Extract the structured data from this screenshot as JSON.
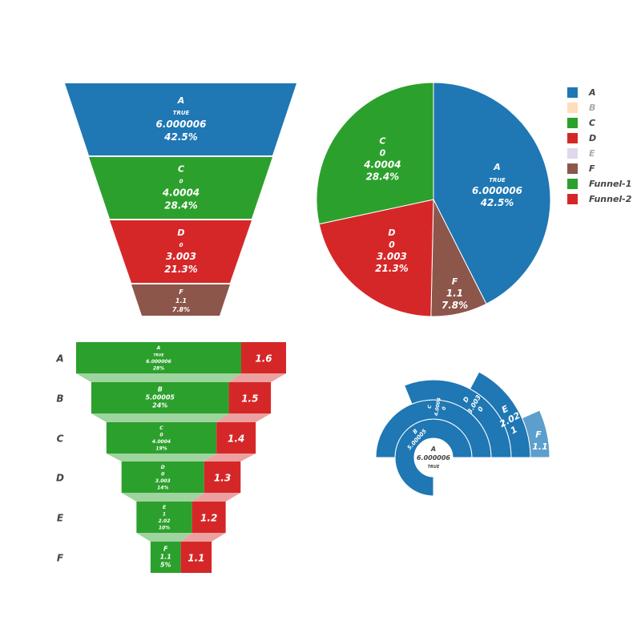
{
  "colors": {
    "A": "#1f77b4",
    "B": "#ffbb78",
    "C": "#2ca02c",
    "D": "#d62728",
    "E": "#c5b0d5",
    "F": "#8c564b",
    "Funnel-1": "#2ca02c",
    "Funnel-2": "#d62728",
    "Sunburst": "#1f77b4",
    "Sunburst-light": "#5d9fcc",
    "Connector-green": "#9ed49e",
    "Connector-red": "#eda0a0"
  },
  "legend": [
    {
      "label": "A",
      "color": "#1f77b4",
      "faded": false
    },
    {
      "label": "B",
      "color": "#ffbb78",
      "faded": true
    },
    {
      "label": "C",
      "color": "#2ca02c",
      "faded": false
    },
    {
      "label": "D",
      "color": "#d62728",
      "faded": false
    },
    {
      "label": "E",
      "color": "#c5b0d5",
      "faded": true
    },
    {
      "label": "F",
      "color": "#8c564b",
      "faded": false
    },
    {
      "label": "Funnel-1",
      "color": "#2ca02c",
      "faded": false
    },
    {
      "label": "Funnel-2",
      "color": "#d62728",
      "faded": false
    }
  ],
  "chart_data": [
    {
      "type": "funnelarea",
      "segments": [
        {
          "label": "A",
          "text": "TRUE",
          "value": "6.000006",
          "percent": "42.5%"
        },
        {
          "label": "C",
          "text": "0",
          "value": "4.0004",
          "percent": "28.4%"
        },
        {
          "label": "D",
          "text": "0",
          "value": "3.003",
          "percent": "21.3%"
        },
        {
          "label": "F",
          "text": "",
          "value": "1.1",
          "percent": "7.8%"
        }
      ]
    },
    {
      "type": "pie",
      "slices": [
        {
          "label": "A",
          "text": "TRUE",
          "value": 6.000006,
          "value_text": "6.000006",
          "percent": "42.5%"
        },
        {
          "label": "F",
          "text": "",
          "value": 1.1,
          "value_text": "1.1",
          "percent": "7.8%"
        },
        {
          "label": "D",
          "text": "0",
          "value": 3.003,
          "value_text": "3.003",
          "percent": "21.3%"
        },
        {
          "label": "C",
          "text": "0",
          "value": 4.0004,
          "value_text": "4.0004",
          "percent": "28.4%"
        }
      ]
    },
    {
      "type": "funnel",
      "categories": [
        "A",
        "B",
        "C",
        "D",
        "E",
        "F"
      ],
      "series": [
        {
          "name": "Funnel-1",
          "values": [
            6.000006,
            5.00005,
            4.0004,
            3.003,
            2.02,
            1.1
          ],
          "labels": [
            [
              "A",
              "TRUE",
              "6.000006",
              "28%"
            ],
            [
              "B",
              "5.00005",
              "24%"
            ],
            [
              "C",
              "0",
              "4.0004",
              "19%"
            ],
            [
              "D",
              "0",
              "3.003",
              "14%"
            ],
            [
              "E",
              "1",
              "2.02",
              "10%"
            ],
            [
              "F",
              "1.1",
              "5%"
            ]
          ]
        },
        {
          "name": "Funnel-2",
          "values": [
            1.6,
            1.5,
            1.4,
            1.3,
            1.2,
            1.1
          ],
          "labels": [
            "1.6",
            "1.5",
            "1.4",
            "1.3",
            "1.2",
            "1.1"
          ]
        }
      ]
    },
    {
      "type": "sunburst",
      "center": {
        "label": "A",
        "value": "6.000006",
        "text": "TRUE"
      },
      "ring1": {
        "label": "B",
        "value": "5.00005"
      },
      "ring2": {
        "label": "C",
        "value": "4.0004",
        "text": "0"
      },
      "ring3": {
        "label": "D",
        "value": "3.003",
        "text": "0"
      },
      "ring4": {
        "label": "E",
        "value": "2.02",
        "text": "1"
      },
      "ring5": {
        "label": "F",
        "value": "1.1"
      }
    }
  ]
}
